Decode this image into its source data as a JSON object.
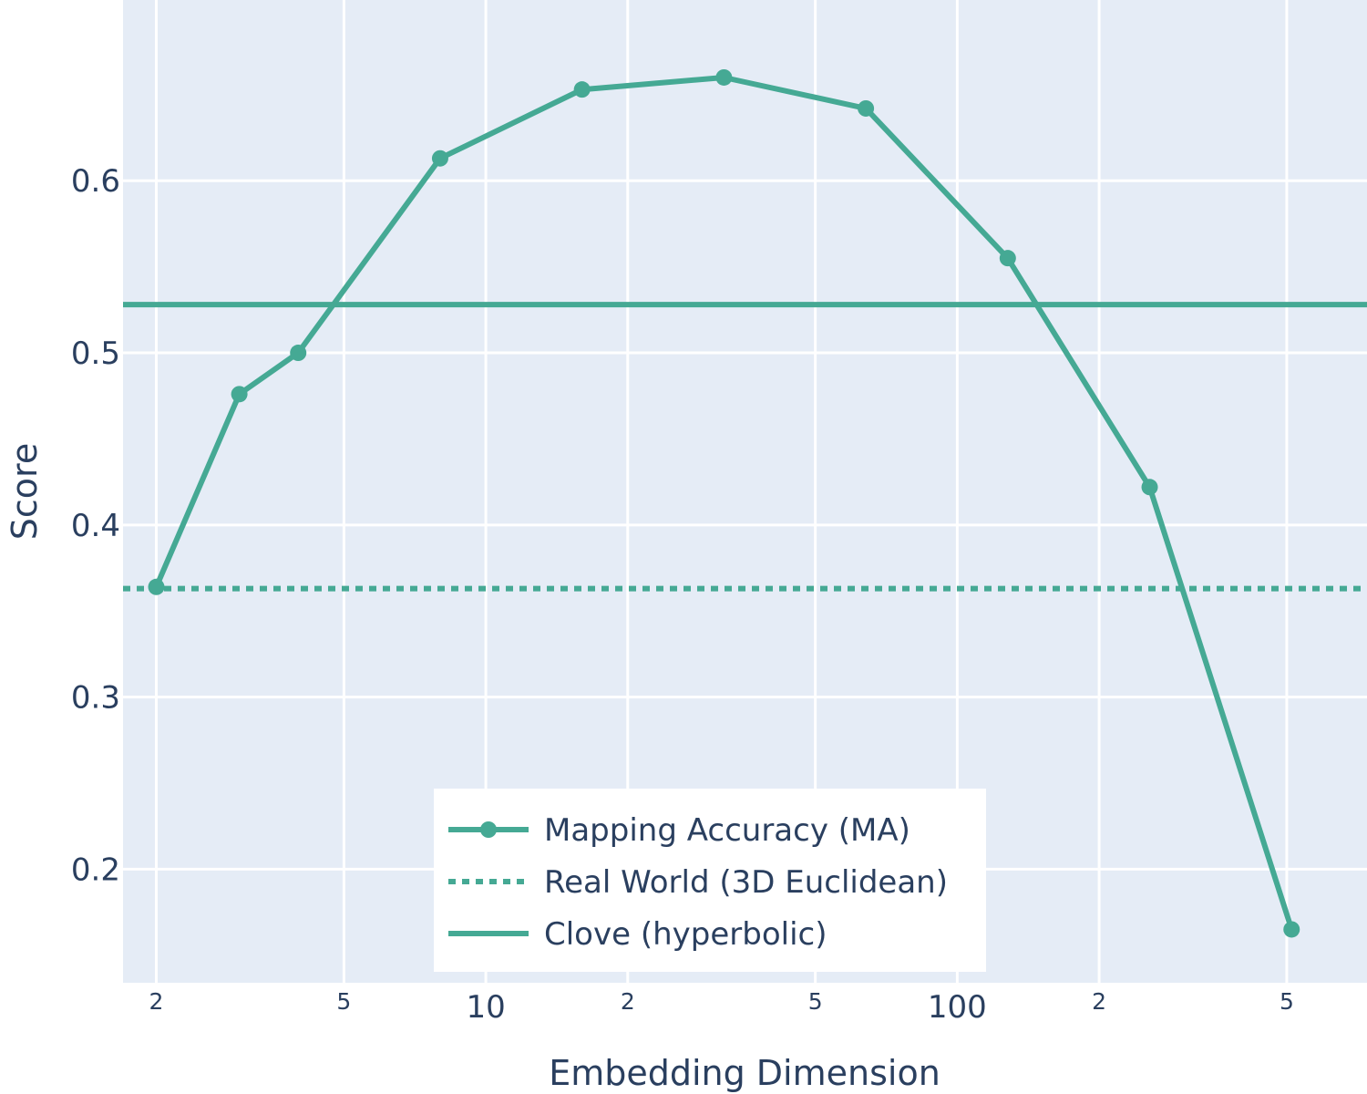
{
  "chart_data": {
    "type": "line",
    "xscale": "log",
    "xlabel": "Embedding Dimension",
    "ylabel": "Score",
    "xlim": [
      1.7,
      740
    ],
    "ylim": [
      0.134,
      0.705
    ],
    "grid": true,
    "legend_position": "bottom-center",
    "x_major_ticks": [
      {
        "value": 10,
        "label": "10"
      },
      {
        "value": 100,
        "label": "100"
      }
    ],
    "x_minor_ticks": [
      {
        "value": 2,
        "label": "2"
      },
      {
        "value": 5,
        "label": "5"
      },
      {
        "value": 20,
        "label": "2"
      },
      {
        "value": 50,
        "label": "5"
      },
      {
        "value": 200,
        "label": "2"
      },
      {
        "value": 500,
        "label": "5"
      }
    ],
    "y_ticks": [
      {
        "value": 0.2,
        "label": "0.2"
      },
      {
        "value": 0.3,
        "label": "0.3"
      },
      {
        "value": 0.4,
        "label": "0.4"
      },
      {
        "value": 0.5,
        "label": "0.5"
      },
      {
        "value": 0.6,
        "label": "0.6"
      }
    ],
    "series": [
      {
        "name": "Mapping Accuracy (MA)",
        "style": "line-markers",
        "color": "#45a994",
        "x": [
          2,
          3,
          4,
          8,
          16,
          32,
          64,
          128,
          256,
          512
        ],
        "y": [
          0.364,
          0.476,
          0.5,
          0.613,
          0.653,
          0.66,
          0.642,
          0.555,
          0.422,
          0.165
        ]
      },
      {
        "name": "Real World (3D Euclidean)",
        "style": "dotted",
        "color": "#45a994",
        "y_const": 0.363
      },
      {
        "name": "Clove (hyperbolic)",
        "style": "solid",
        "color": "#45a994",
        "y_const": 0.528
      }
    ],
    "colors": {
      "plot_background": "#e5ecf6",
      "grid": "#ffffff",
      "text": "#2a3f5f",
      "legend_background": "#ffffff"
    }
  }
}
